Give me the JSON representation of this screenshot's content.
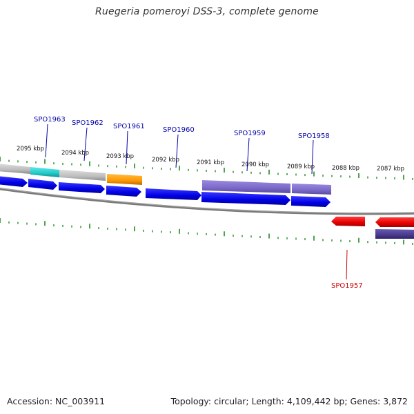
{
  "title": "Ruegeria pomeroyi DSS-3, complete genome",
  "footer": {
    "accession": "Accession: NC_003911",
    "summary": "Topology: circular; Length: 4,109,442 bp; Genes: 3,872"
  },
  "scale_labels": [
    "2095 kbp",
    "2094 kbp",
    "2093 kbp",
    "2092 kbp",
    "2091 kbp",
    "2090 kbp",
    "2089 kbp",
    "2088 kbp",
    "2087 kbp"
  ],
  "gene_labels": [
    {
      "name": "SPO1963",
      "color": "#0000aa"
    },
    {
      "name": "SPO1962",
      "color": "#0000aa"
    },
    {
      "name": "SPO1961",
      "color": "#0000aa"
    },
    {
      "name": "SPO1960",
      "color": "#0000aa"
    },
    {
      "name": "SPO1959",
      "color": "#0000aa"
    },
    {
      "name": "SPO1958",
      "color": "#0000aa"
    },
    {
      "name": "SPO1957",
      "color": "#cc0000"
    }
  ],
  "colors": {
    "cds_forward": "#0000ee",
    "cds_reverse": "#ee0000",
    "cog_purple": "#7b68c8",
    "cog_dark": "#4a3a8f",
    "cog_cyan": "#22c8c8",
    "cog_orange": "#ff9900",
    "cog_gray": "#c0c0c0",
    "backbone": "#808080",
    "ticks": "#228b22"
  }
}
